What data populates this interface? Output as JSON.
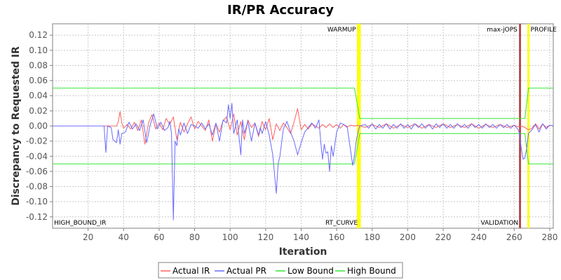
{
  "chart_data": {
    "type": "line",
    "title": "IR/PR Accuracy",
    "xlabel": "Iteration",
    "ylabel": "Discrepancy to Requested IR",
    "xlim": [
      0,
      282
    ],
    "ylim": [
      -0.135,
      0.135
    ],
    "x_ticks": [
      20,
      40,
      60,
      80,
      100,
      120,
      140,
      160,
      180,
      200,
      220,
      240,
      260,
      280
    ],
    "y_ticks": [
      -0.12,
      -0.1,
      -0.08,
      -0.06,
      -0.04,
      -0.02,
      0.0,
      0.02,
      0.04,
      0.06,
      0.08,
      0.1,
      0.12
    ],
    "grid": true,
    "legend_position": "bottom",
    "colors": {
      "actual_ir": "#ff6060",
      "actual_pr": "#6a6aff",
      "low_bound": "#33e633",
      "high_bound": "#33e633",
      "yellow_marker": "#ffff00",
      "red_marker": "#b24040"
    },
    "markers": [
      {
        "x": 172,
        "label": "WARMUP",
        "color": "#ffff00",
        "label_pos": "top-left"
      },
      {
        "x": 173,
        "label": "RT_CURVE",
        "color": "#ffff00",
        "label_pos": "bottom-left"
      },
      {
        "x": 263,
        "label": "max-jOPS",
        "color": "#b24040",
        "label_pos": "top-left"
      },
      {
        "x": 263.5,
        "label": "VALIDATION",
        "color": "#b24040",
        "label_pos": "bottom-left"
      },
      {
        "x": 268,
        "label": "PROFILE",
        "color": "#ffff00",
        "label_pos": "top-right"
      }
    ],
    "corner_labels": [
      {
        "label": "HIGH_BOUND_IR",
        "position": "bottom-left"
      }
    ],
    "series": [
      {
        "name": "Actual IR",
        "color": "#ff6060",
        "points": [
          [
            0,
            0.0
          ],
          [
            36,
            0.0
          ],
          [
            37,
            0.006
          ],
          [
            38,
            0.019
          ],
          [
            39,
            0.004
          ],
          [
            40,
            -0.003
          ],
          [
            42,
            0.002
          ],
          [
            44,
            -0.004
          ],
          [
            46,
            0.005
          ],
          [
            48,
            -0.006
          ],
          [
            50,
            0.008
          ],
          [
            52,
            -0.024
          ],
          [
            54,
            0.004
          ],
          [
            56,
            0.015
          ],
          [
            58,
            -0.004
          ],
          [
            60,
            0.004
          ],
          [
            62,
            -0.005
          ],
          [
            64,
            0.01
          ],
          [
            66,
            0.002
          ],
          [
            68,
            0.012
          ],
          [
            70,
            -0.018
          ],
          [
            72,
            0.005
          ],
          [
            74,
            -0.008
          ],
          [
            76,
            0.003
          ],
          [
            78,
            0.012
          ],
          [
            80,
            -0.004
          ],
          [
            82,
            0.006
          ],
          [
            84,
            0.0
          ],
          [
            86,
            -0.006
          ],
          [
            88,
            0.008
          ],
          [
            90,
            -0.02
          ],
          [
            92,
            0.003
          ],
          [
            94,
            -0.008
          ],
          [
            96,
            0.007
          ],
          [
            98,
            0.012
          ],
          [
            100,
            -0.005
          ],
          [
            102,
            0.016
          ],
          [
            104,
            -0.012
          ],
          [
            106,
            0.006
          ],
          [
            108,
            -0.018
          ],
          [
            110,
            0.008
          ],
          [
            112,
            -0.002
          ],
          [
            114,
            0.004
          ],
          [
            116,
            -0.014
          ],
          [
            118,
            0.006
          ],
          [
            120,
            -0.005
          ],
          [
            122,
            0.01
          ],
          [
            124,
            -0.018
          ],
          [
            126,
            0.003
          ],
          [
            128,
            -0.006
          ],
          [
            130,
            0.004
          ],
          [
            132,
            -0.002
          ],
          [
            134,
            -0.01
          ],
          [
            136,
            0.005
          ],
          [
            138,
            0.023
          ],
          [
            140,
            -0.005
          ],
          [
            142,
            0.002
          ],
          [
            144,
            -0.004
          ],
          [
            146,
            0.003
          ],
          [
            148,
            0.0
          ],
          [
            150,
            -0.003
          ],
          [
            152,
            0.002
          ],
          [
            154,
            -0.002
          ],
          [
            156,
            0.003
          ],
          [
            158,
            -0.002
          ],
          [
            160,
            0.002
          ],
          [
            162,
            -0.003
          ],
          [
            164,
            0.002
          ],
          [
            166,
            -0.001
          ],
          [
            168,
            0.001
          ],
          [
            170,
            0.0
          ],
          [
            172,
            0.001
          ],
          [
            176,
            -0.002
          ],
          [
            180,
            0.002
          ],
          [
            184,
            -0.002
          ],
          [
            188,
            0.003
          ],
          [
            192,
            -0.003
          ],
          [
            196,
            0.002
          ],
          [
            200,
            -0.002
          ],
          [
            204,
            0.003
          ],
          [
            208,
            -0.003
          ],
          [
            212,
            0.002
          ],
          [
            216,
            -0.002
          ],
          [
            220,
            0.003
          ],
          [
            224,
            -0.002
          ],
          [
            228,
            0.002
          ],
          [
            232,
            -0.002
          ],
          [
            236,
            0.003
          ],
          [
            240,
            -0.003
          ],
          [
            244,
            0.002
          ],
          [
            248,
            -0.002
          ],
          [
            252,
            0.002
          ],
          [
            256,
            -0.002
          ],
          [
            260,
            0.001
          ],
          [
            262,
            -0.001
          ],
          [
            264,
            0.0
          ],
          [
            266,
            -0.002
          ],
          [
            268,
            -0.005
          ],
          [
            270,
            -0.003
          ],
          [
            272,
            0.003
          ],
          [
            274,
            -0.004
          ],
          [
            276,
            0.003
          ],
          [
            278,
            -0.002
          ],
          [
            280,
            0.001
          ],
          [
            282,
            0.0
          ]
        ]
      },
      {
        "name": "Actual PR",
        "color": "#6a6aff",
        "points": [
          [
            0,
            0.0
          ],
          [
            29,
            0.0
          ],
          [
            30,
            -0.035
          ],
          [
            31,
            0.0
          ],
          [
            33,
            -0.002
          ],
          [
            34,
            -0.018
          ],
          [
            36,
            -0.022
          ],
          [
            37,
            -0.005
          ],
          [
            38,
            -0.024
          ],
          [
            39,
            -0.01
          ],
          [
            41,
            -0.008
          ],
          [
            43,
            0.005
          ],
          [
            45,
            -0.004
          ],
          [
            47,
            0.003
          ],
          [
            49,
            -0.006
          ],
          [
            51,
            0.008
          ],
          [
            53,
            -0.022
          ],
          [
            55,
            0.002
          ],
          [
            57,
            0.016
          ],
          [
            59,
            -0.004
          ],
          [
            61,
            0.005
          ],
          [
            63,
            -0.006
          ],
          [
            65,
            -0.002
          ],
          [
            66,
            0.006
          ],
          [
            67,
            -0.01
          ],
          [
            68,
            -0.124
          ],
          [
            69,
            -0.02
          ],
          [
            70,
            -0.026
          ],
          [
            71,
            -0.004
          ],
          [
            72,
            -0.012
          ],
          [
            74,
            0.004
          ],
          [
            76,
            -0.01
          ],
          [
            78,
            0.002
          ],
          [
            80,
            0.0
          ],
          [
            82,
            -0.003
          ],
          [
            84,
            0.004
          ],
          [
            86,
            -0.004
          ],
          [
            88,
            0.003
          ],
          [
            90,
            -0.012
          ],
          [
            92,
            0.004
          ],
          [
            94,
            -0.02
          ],
          [
            96,
            0.008
          ],
          [
            98,
            0.004
          ],
          [
            99,
            0.028
          ],
          [
            100,
            0.01
          ],
          [
            101,
            0.03
          ],
          [
            102,
            -0.01
          ],
          [
            104,
            0.008
          ],
          [
            106,
            -0.038
          ],
          [
            107,
            0.008
          ],
          [
            108,
            -0.01
          ],
          [
            110,
            0.006
          ],
          [
            112,
            -0.02
          ],
          [
            114,
            0.004
          ],
          [
            116,
            -0.012
          ],
          [
            117,
            -0.002
          ],
          [
            118,
            -0.01
          ],
          [
            120,
            0.006
          ],
          [
            122,
            -0.012
          ],
          [
            124,
            -0.038
          ],
          [
            126,
            -0.089
          ],
          [
            127,
            -0.05
          ],
          [
            128,
            -0.04
          ],
          [
            130,
            -0.004
          ],
          [
            132,
            0.006
          ],
          [
            134,
            -0.008
          ],
          [
            136,
            -0.02
          ],
          [
            138,
            -0.038
          ],
          [
            140,
            -0.022
          ],
          [
            142,
            -0.008
          ],
          [
            144,
            -0.002
          ],
          [
            146,
            0.004
          ],
          [
            148,
            -0.003
          ],
          [
            150,
            0.008
          ],
          [
            151,
            -0.02
          ],
          [
            152,
            -0.044
          ],
          [
            153,
            -0.024
          ],
          [
            154,
            -0.036
          ],
          [
            155,
            -0.034
          ],
          [
            156,
            -0.06
          ],
          [
            157,
            -0.026
          ],
          [
            158,
            -0.04
          ],
          [
            160,
            -0.008
          ],
          [
            162,
            0.004
          ],
          [
            164,
            0.002
          ],
          [
            166,
            -0.002
          ],
          [
            168,
            -0.035
          ],
          [
            169,
            -0.052
          ],
          [
            170,
            -0.04
          ],
          [
            171,
            -0.02
          ],
          [
            172,
            -0.008
          ],
          [
            173,
            0.0
          ],
          [
            176,
            0.002
          ],
          [
            178,
            -0.003
          ],
          [
            180,
            0.003
          ],
          [
            182,
            -0.004
          ],
          [
            184,
            0.002
          ],
          [
            186,
            -0.003
          ],
          [
            188,
            0.003
          ],
          [
            190,
            -0.004
          ],
          [
            192,
            0.002
          ],
          [
            194,
            -0.003
          ],
          [
            196,
            0.003
          ],
          [
            198,
            -0.003
          ],
          [
            200,
            0.002
          ],
          [
            202,
            -0.004
          ],
          [
            204,
            0.003
          ],
          [
            206,
            -0.002
          ],
          [
            208,
            0.003
          ],
          [
            210,
            -0.003
          ],
          [
            212,
            0.002
          ],
          [
            214,
            -0.004
          ],
          [
            216,
            0.003
          ],
          [
            218,
            -0.002
          ],
          [
            220,
            0.003
          ],
          [
            222,
            -0.003
          ],
          [
            224,
            0.002
          ],
          [
            226,
            -0.003
          ],
          [
            228,
            0.003
          ],
          [
            230,
            -0.002
          ],
          [
            232,
            0.002
          ],
          [
            234,
            -0.003
          ],
          [
            236,
            0.003
          ],
          [
            238,
            -0.002
          ],
          [
            240,
            0.002
          ],
          [
            242,
            -0.003
          ],
          [
            244,
            0.003
          ],
          [
            246,
            -0.002
          ],
          [
            248,
            0.002
          ],
          [
            250,
            -0.003
          ],
          [
            252,
            0.002
          ],
          [
            254,
            -0.002
          ],
          [
            256,
            0.002
          ],
          [
            258,
            -0.003
          ],
          [
            260,
            0.001
          ],
          [
            262,
            -0.004
          ],
          [
            263,
            -0.01
          ],
          [
            264,
            -0.03
          ],
          [
            265,
            -0.044
          ],
          [
            266,
            -0.042
          ],
          [
            267,
            -0.03
          ],
          [
            268,
            -0.01
          ],
          [
            270,
            -0.005
          ],
          [
            272,
            0.002
          ],
          [
            274,
            -0.008
          ],
          [
            276,
            0.003
          ],
          [
            278,
            -0.004
          ],
          [
            280,
            0.001
          ],
          [
            282,
            0.0
          ]
        ]
      },
      {
        "name": "Low Bound",
        "color": "#33e633",
        "points": [
          [
            0,
            -0.05
          ],
          [
            170,
            -0.05
          ],
          [
            173,
            -0.01
          ],
          [
            266,
            -0.01
          ],
          [
            268,
            -0.05
          ],
          [
            282,
            -0.05
          ]
        ]
      },
      {
        "name": "High Bound",
        "color": "#33e633",
        "points": [
          [
            0,
            0.05
          ],
          [
            170,
            0.05
          ],
          [
            173,
            0.01
          ],
          [
            266,
            0.01
          ],
          [
            268,
            0.05
          ],
          [
            282,
            0.05
          ]
        ]
      }
    ]
  }
}
